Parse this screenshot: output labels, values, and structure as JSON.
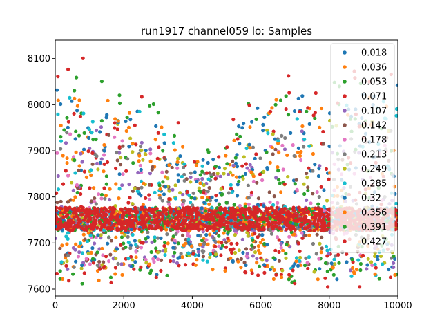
{
  "chart_data": {
    "type": "scatter",
    "title": "run1917 channel059 lo: Samples",
    "xlabel": "",
    "ylabel": "",
    "xlim": [
      0,
      10000
    ],
    "ylim": [
      7585,
      8140
    ],
    "x_ticks": [
      0,
      2000,
      4000,
      6000,
      8000,
      10000
    ],
    "x_tick_labels": [
      "0",
      "2000",
      "4000",
      "6000",
      "8000",
      "10000"
    ],
    "y_ticks": [
      7600,
      7700,
      7800,
      7900,
      8000,
      8100
    ],
    "y_tick_labels": [
      "7600",
      "7700",
      "7800",
      "7900",
      "8000",
      "8100"
    ],
    "legend_location": "top-right",
    "baseline": 7752,
    "band_halfwidth": 25,
    "series": [
      {
        "name": "0.018",
        "color": "#1f77b4",
        "spread_hi": 250,
        "spread_lo": 90
      },
      {
        "name": "0.036",
        "color": "#ff7f0e",
        "spread_hi": 240,
        "spread_lo": 95
      },
      {
        "name": "0.053",
        "color": "#2ca02c",
        "spread_hi": 300,
        "spread_lo": 105
      },
      {
        "name": "0.071",
        "color": "#d62728",
        "spread_hi": 230,
        "spread_lo": 110
      },
      {
        "name": "0.107",
        "color": "#9467bd",
        "spread_hi": 180,
        "spread_lo": 90
      },
      {
        "name": "0.142",
        "color": "#8c564b",
        "spread_hi": 170,
        "spread_lo": 85
      },
      {
        "name": "0.178",
        "color": "#e377c2",
        "spread_hi": 160,
        "spread_lo": 80
      },
      {
        "name": "0.213",
        "color": "#7f7f7f",
        "spread_hi": 170,
        "spread_lo": 80
      },
      {
        "name": "0.249",
        "color": "#bcbd22",
        "spread_hi": 190,
        "spread_lo": 90
      },
      {
        "name": "0.285",
        "color": "#17becf",
        "spread_hi": 240,
        "spread_lo": 100
      },
      {
        "name": "0.32",
        "color": "#1f77b4",
        "spread_hi": 270,
        "spread_lo": 110
      },
      {
        "name": "0.356",
        "color": "#ff7f0e",
        "spread_hi": 260,
        "spread_lo": 115
      },
      {
        "name": "0.391",
        "color": "#2ca02c",
        "spread_hi": 300,
        "spread_lo": 120
      },
      {
        "name": "0.427",
        "color": "#d62728",
        "spread_hi": 330,
        "spread_lo": 125
      }
    ]
  }
}
